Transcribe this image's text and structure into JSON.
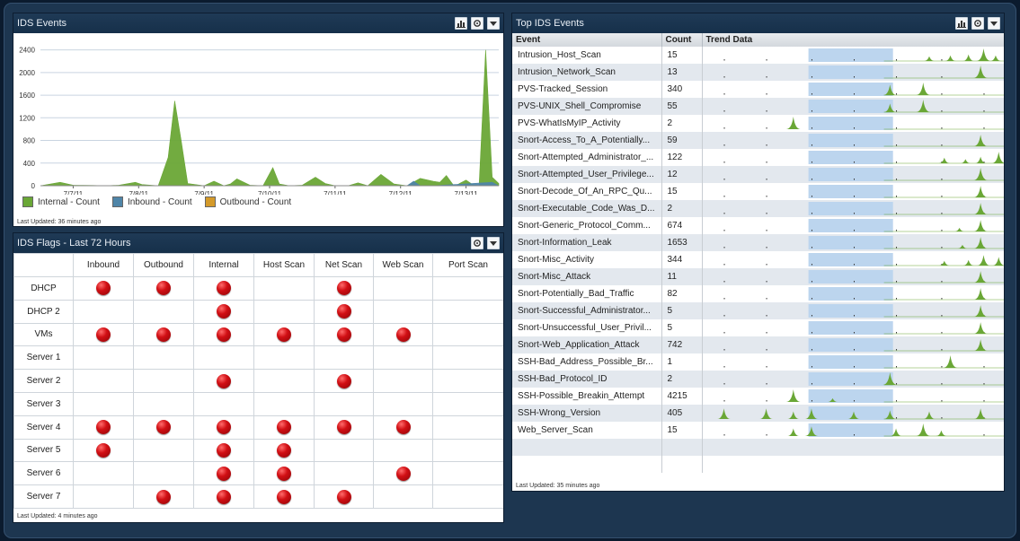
{
  "events_panel": {
    "title": "IDS Events",
    "last_updated": "Last Updated: 36 minutes ago",
    "legend": [
      {
        "label": "Internal - Count",
        "color": "#6aa736"
      },
      {
        "label": "Inbound - Count",
        "color": "#4f85a8"
      },
      {
        "label": "Outbound - Count",
        "color": "#d49a2a"
      }
    ],
    "chart_data": {
      "type": "area",
      "title": "",
      "xlabel": "",
      "ylabel": "",
      "ylim": [
        0,
        2600
      ],
      "yticks": [
        0,
        400,
        800,
        1200,
        1600,
        2000,
        2400
      ],
      "xtick_labels": [
        "7/7/11",
        "7/8/11",
        "7/9/11",
        "7/10/11",
        "7/11/11",
        "7/12/11",
        "7/13/11"
      ],
      "grid": true,
      "legend_position": "bottom",
      "series": [
        {
          "name": "Internal - Count",
          "color": "#6aa736",
          "x": [
            0,
            0.3,
            0.5,
            0.8,
            1.0,
            1.2,
            1.45,
            1.55,
            1.8,
            1.95,
            2.05,
            2.15,
            2.25,
            2.5,
            2.65,
            2.8,
            2.9,
            3.0,
            3.2,
            3.4,
            3.55,
            3.65,
            3.8,
            4.0,
            4.2,
            4.35,
            4.5,
            4.7,
            4.85,
            5.0,
            5.2,
            5.4,
            5.6,
            5.8,
            6.0,
            6.1,
            6.2,
            6.3,
            6.35,
            6.4,
            6.5,
            6.6,
            6.7,
            6.8,
            6.9,
            7.0
          ],
          "values": [
            0,
            60,
            10,
            5,
            0,
            10,
            60,
            20,
            0,
            500,
            1500,
            800,
            40,
            0,
            80,
            0,
            30,
            120,
            10,
            0,
            320,
            30,
            0,
            10,
            150,
            40,
            0,
            0,
            50,
            0,
            200,
            30,
            0,
            130,
            80,
            60,
            180,
            20,
            0,
            40,
            100,
            20,
            0,
            2400,
            150,
            40
          ]
        },
        {
          "name": "Inbound - Count",
          "color": "#4f85a8",
          "x": [
            0,
            5.2,
            5.6,
            5.7,
            5.8,
            6.0,
            6.9,
            7.0
          ],
          "values": [
            0,
            0,
            0,
            80,
            0,
            0,
            60,
            0
          ]
        },
        {
          "name": "Outbound - Count",
          "color": "#d49a2a",
          "x": [
            0,
            7.0
          ],
          "values": [
            0,
            0
          ]
        }
      ]
    }
  },
  "flags_panel": {
    "title": "IDS Flags - Last 72 Hours",
    "last_updated": "Last Updated: 4 minutes ago",
    "columns": [
      "Inbound",
      "Outbound",
      "Internal",
      "Host Scan",
      "Net Scan",
      "Web Scan",
      "Port Scan"
    ],
    "rows": [
      {
        "label": "DHCP",
        "flags": [
          1,
          1,
          1,
          0,
          1,
          0,
          0
        ]
      },
      {
        "label": "DHCP 2",
        "flags": [
          0,
          0,
          1,
          0,
          1,
          0,
          0
        ]
      },
      {
        "label": "VMs",
        "flags": [
          1,
          1,
          1,
          1,
          1,
          1,
          0
        ]
      },
      {
        "label": "Server 1",
        "flags": [
          0,
          0,
          0,
          0,
          0,
          0,
          0
        ]
      },
      {
        "label": "Server 2",
        "flags": [
          0,
          0,
          1,
          0,
          1,
          0,
          0
        ]
      },
      {
        "label": "Server 3",
        "flags": [
          0,
          0,
          0,
          0,
          0,
          0,
          0
        ]
      },
      {
        "label": "Server 4",
        "flags": [
          1,
          1,
          1,
          1,
          1,
          1,
          0
        ]
      },
      {
        "label": "Server 5",
        "flags": [
          1,
          0,
          1,
          1,
          0,
          0,
          0
        ]
      },
      {
        "label": "Server 6",
        "flags": [
          0,
          0,
          1,
          1,
          0,
          1,
          0
        ]
      },
      {
        "label": "Server 7",
        "flags": [
          0,
          1,
          1,
          1,
          1,
          0,
          0
        ]
      }
    ]
  },
  "top_panel": {
    "title": "Top IDS Events",
    "last_updated": "Last Updated: 35 minutes ago",
    "columns": [
      "Event",
      "Count",
      "Trend Data"
    ],
    "rows": [
      {
        "event": "Intrusion_Host_Scan",
        "count": "15",
        "spikes": [
          [
            0.75,
            0.2
          ],
          [
            0.82,
            0.3
          ],
          [
            0.88,
            0.4
          ],
          [
            0.93,
            1.0
          ],
          [
            0.97,
            0.3
          ]
        ]
      },
      {
        "event": "Intrusion_Network_Scan",
        "count": "13",
        "spikes": [
          [
            0.92,
            1.0
          ]
        ]
      },
      {
        "event": "PVS-Tracked_Session",
        "count": "340",
        "spikes": [
          [
            0.62,
            0.8
          ],
          [
            0.73,
            1.0
          ]
        ]
      },
      {
        "event": "PVS-UNIX_Shell_Compromise",
        "count": "55",
        "spikes": [
          [
            0.62,
            0.6
          ],
          [
            0.73,
            1.0
          ]
        ]
      },
      {
        "event": "PVS-WhatIsMyIP_Activity",
        "count": "2",
        "spikes": [
          [
            0.3,
            1.0
          ]
        ]
      },
      {
        "event": "Snort-Access_To_A_Potentially...",
        "count": "59",
        "spikes": [
          [
            0.92,
            0.9
          ]
        ]
      },
      {
        "event": "Snort-Attempted_Administrator_...",
        "count": "122",
        "spikes": [
          [
            0.8,
            0.3
          ],
          [
            0.87,
            0.15
          ],
          [
            0.92,
            0.4
          ],
          [
            0.98,
            0.9
          ]
        ]
      },
      {
        "event": "Snort-Attempted_User_Privilege...",
        "count": "12",
        "spikes": [
          [
            0.92,
            1.0
          ]
        ]
      },
      {
        "event": "Snort-Decode_Of_An_RPC_Qu...",
        "count": "15",
        "spikes": [
          [
            0.92,
            0.9
          ]
        ]
      },
      {
        "event": "Snort-Executable_Code_Was_D...",
        "count": "2",
        "spikes": [
          [
            0.92,
            0.9
          ]
        ]
      },
      {
        "event": "Snort-Generic_Protocol_Comm...",
        "count": "674",
        "spikes": [
          [
            0.85,
            0.1
          ],
          [
            0.92,
            0.9
          ]
        ]
      },
      {
        "event": "Snort-Information_Leak",
        "count": "1653",
        "spikes": [
          [
            0.86,
            0.1
          ],
          [
            0.92,
            0.9
          ]
        ]
      },
      {
        "event": "Snort-Misc_Activity",
        "count": "344",
        "spikes": [
          [
            0.8,
            0.2
          ],
          [
            0.88,
            0.3
          ],
          [
            0.93,
            0.8
          ],
          [
            0.98,
            0.6
          ]
        ]
      },
      {
        "event": "Snort-Misc_Attack",
        "count": "11",
        "spikes": [
          [
            0.92,
            0.9
          ]
        ]
      },
      {
        "event": "Snort-Potentially_Bad_Traffic",
        "count": "82",
        "spikes": [
          [
            0.92,
            0.9
          ]
        ]
      },
      {
        "event": "Snort-Successful_Administrator...",
        "count": "5",
        "spikes": [
          [
            0.92,
            0.9
          ]
        ]
      },
      {
        "event": "Snort-Unsuccessful_User_Privil...",
        "count": "5",
        "spikes": [
          [
            0.92,
            0.9
          ]
        ]
      },
      {
        "event": "Snort-Web_Application_Attack",
        "count": "742",
        "spikes": [
          [
            0.92,
            0.9
          ]
        ]
      },
      {
        "event": "SSH-Bad_Address_Possible_Br...",
        "count": "1",
        "spikes": [
          [
            0.82,
            1.0
          ]
        ]
      },
      {
        "event": "SSH-Bad_Protocol_ID",
        "count": "2",
        "spikes": [
          [
            0.62,
            1.0
          ]
        ]
      },
      {
        "event": "SSH-Possible_Breakin_Attempt",
        "count": "4215",
        "spikes": [
          [
            0.3,
            1.0
          ],
          [
            0.43,
            0.1
          ]
        ]
      },
      {
        "event": "SSH-Wrong_Version",
        "count": "405",
        "spikes": [
          [
            0.07,
            0.8
          ],
          [
            0.21,
            0.8
          ],
          [
            0.3,
            0.5
          ],
          [
            0.36,
            0.8
          ],
          [
            0.5,
            0.5
          ],
          [
            0.62,
            0.6
          ],
          [
            0.75,
            0.5
          ],
          [
            0.92,
            0.8
          ]
        ]
      },
      {
        "event": "Web_Server_Scan",
        "count": "15",
        "spikes": [
          [
            0.3,
            0.5
          ],
          [
            0.36,
            0.7
          ],
          [
            0.64,
            0.5
          ],
          [
            0.73,
            1.0
          ],
          [
            0.79,
            0.3
          ]
        ]
      }
    ]
  }
}
